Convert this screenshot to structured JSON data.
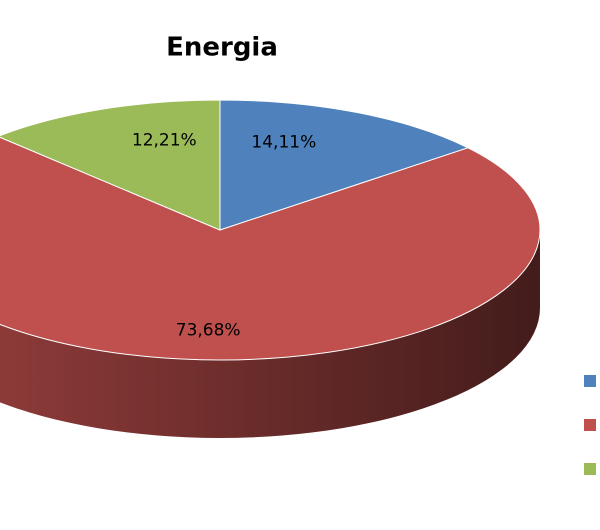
{
  "chart_data": {
    "type": "pie3d",
    "title": "Energia",
    "categories": [
      null,
      null,
      null
    ],
    "values": [
      14.11,
      73.68,
      12.21
    ],
    "value_labels": [
      "14,11%",
      "73,68%",
      "12,21%"
    ],
    "colors": [
      "#4f81bd",
      "#c0504d",
      "#9bbb59"
    ]
  }
}
